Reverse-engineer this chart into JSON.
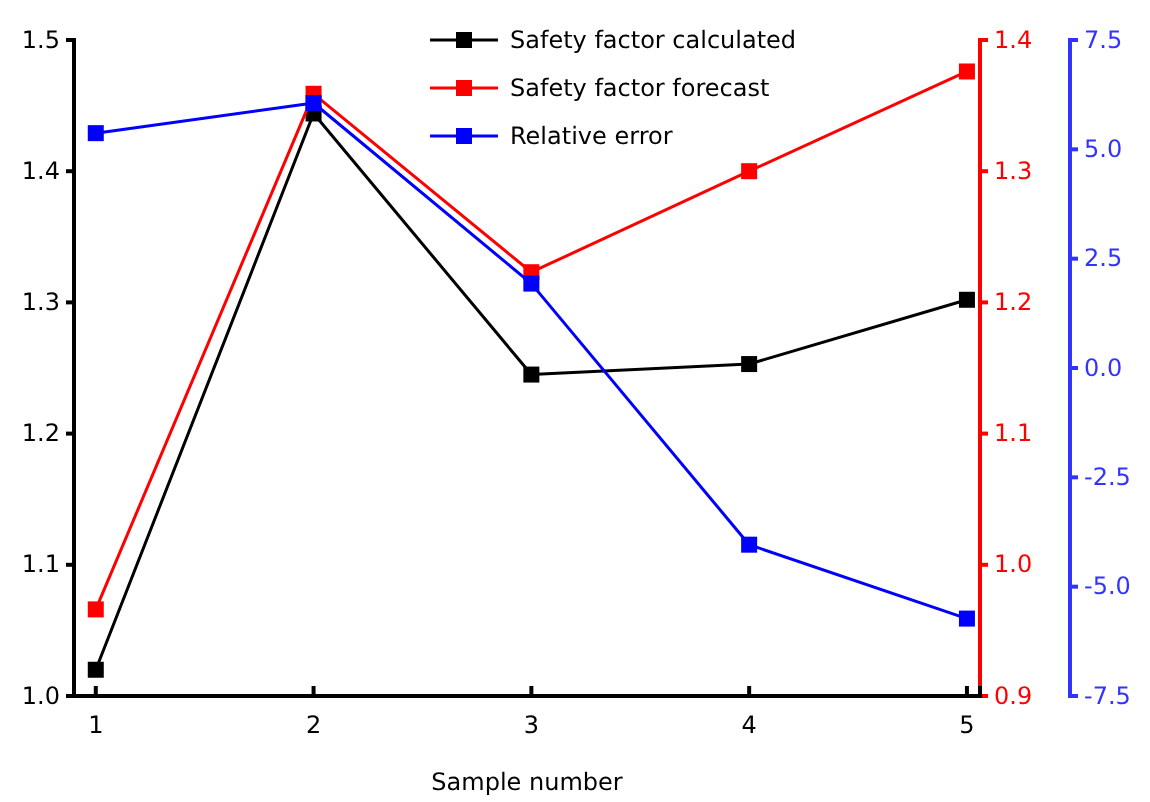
{
  "chart_data": {
    "type": "line",
    "xlabel": "Sample number",
    "x": [
      1,
      2,
      3,
      4,
      5
    ],
    "xlim": [
      0.9,
      5.06
    ],
    "xticks": [
      1,
      2,
      3,
      4,
      5
    ],
    "ylim": [
      1.0,
      1.5
    ],
    "yticks": [
      {
        "value": 1.0,
        "label": "1.0"
      },
      {
        "value": 1.1,
        "label": "1.1"
      },
      {
        "value": 1.2,
        "label": "1.2"
      },
      {
        "value": 1.3,
        "label": "1.3"
      },
      {
        "value": 1.4,
        "label": "1.4"
      },
      {
        "value": 1.5,
        "label": "1.5"
      }
    ],
    "y2lim": [
      0.9,
      1.4
    ],
    "y2ticks": [
      {
        "value": 0.9,
        "label": "0.9"
      },
      {
        "value": 1.0,
        "label": "1.0"
      },
      {
        "value": 1.1,
        "label": "1.1"
      },
      {
        "value": 1.2,
        "label": "1.2"
      },
      {
        "value": 1.3,
        "label": "1.3"
      },
      {
        "value": 1.4,
        "label": "1.4"
      }
    ],
    "y3lim": [
      -7.5,
      7.5
    ],
    "y3ticks": [
      -7.5,
      {
        "value": -5,
        "label": "-5.0"
      },
      -2.5,
      {
        "value": 0,
        "label": "0.0"
      },
      2.5,
      {
        "value": 5,
        "label": "5.0"
      },
      7.5
    ],
    "series": [
      {
        "name": "Safety factor calculated",
        "color": "#000000",
        "values": [
          1.02,
          1.444,
          1.245,
          1.253,
          1.302
        ]
      },
      {
        "name": "Safety factor forecast",
        "color": "#ff0000",
        "axis": "y2",
        "values": [
          0.966,
          1.359,
          1.223,
          1.3,
          1.376
        ]
      },
      {
        "name": "Relative error",
        "color": "#0000ff",
        "axis": "y3",
        "values": [
          5.37,
          6.06,
          1.93,
          -4.04,
          -5.73
        ]
      }
    ],
    "legend": "top right",
    "marker": "square",
    "line_style": "solid",
    "grid": false
  }
}
